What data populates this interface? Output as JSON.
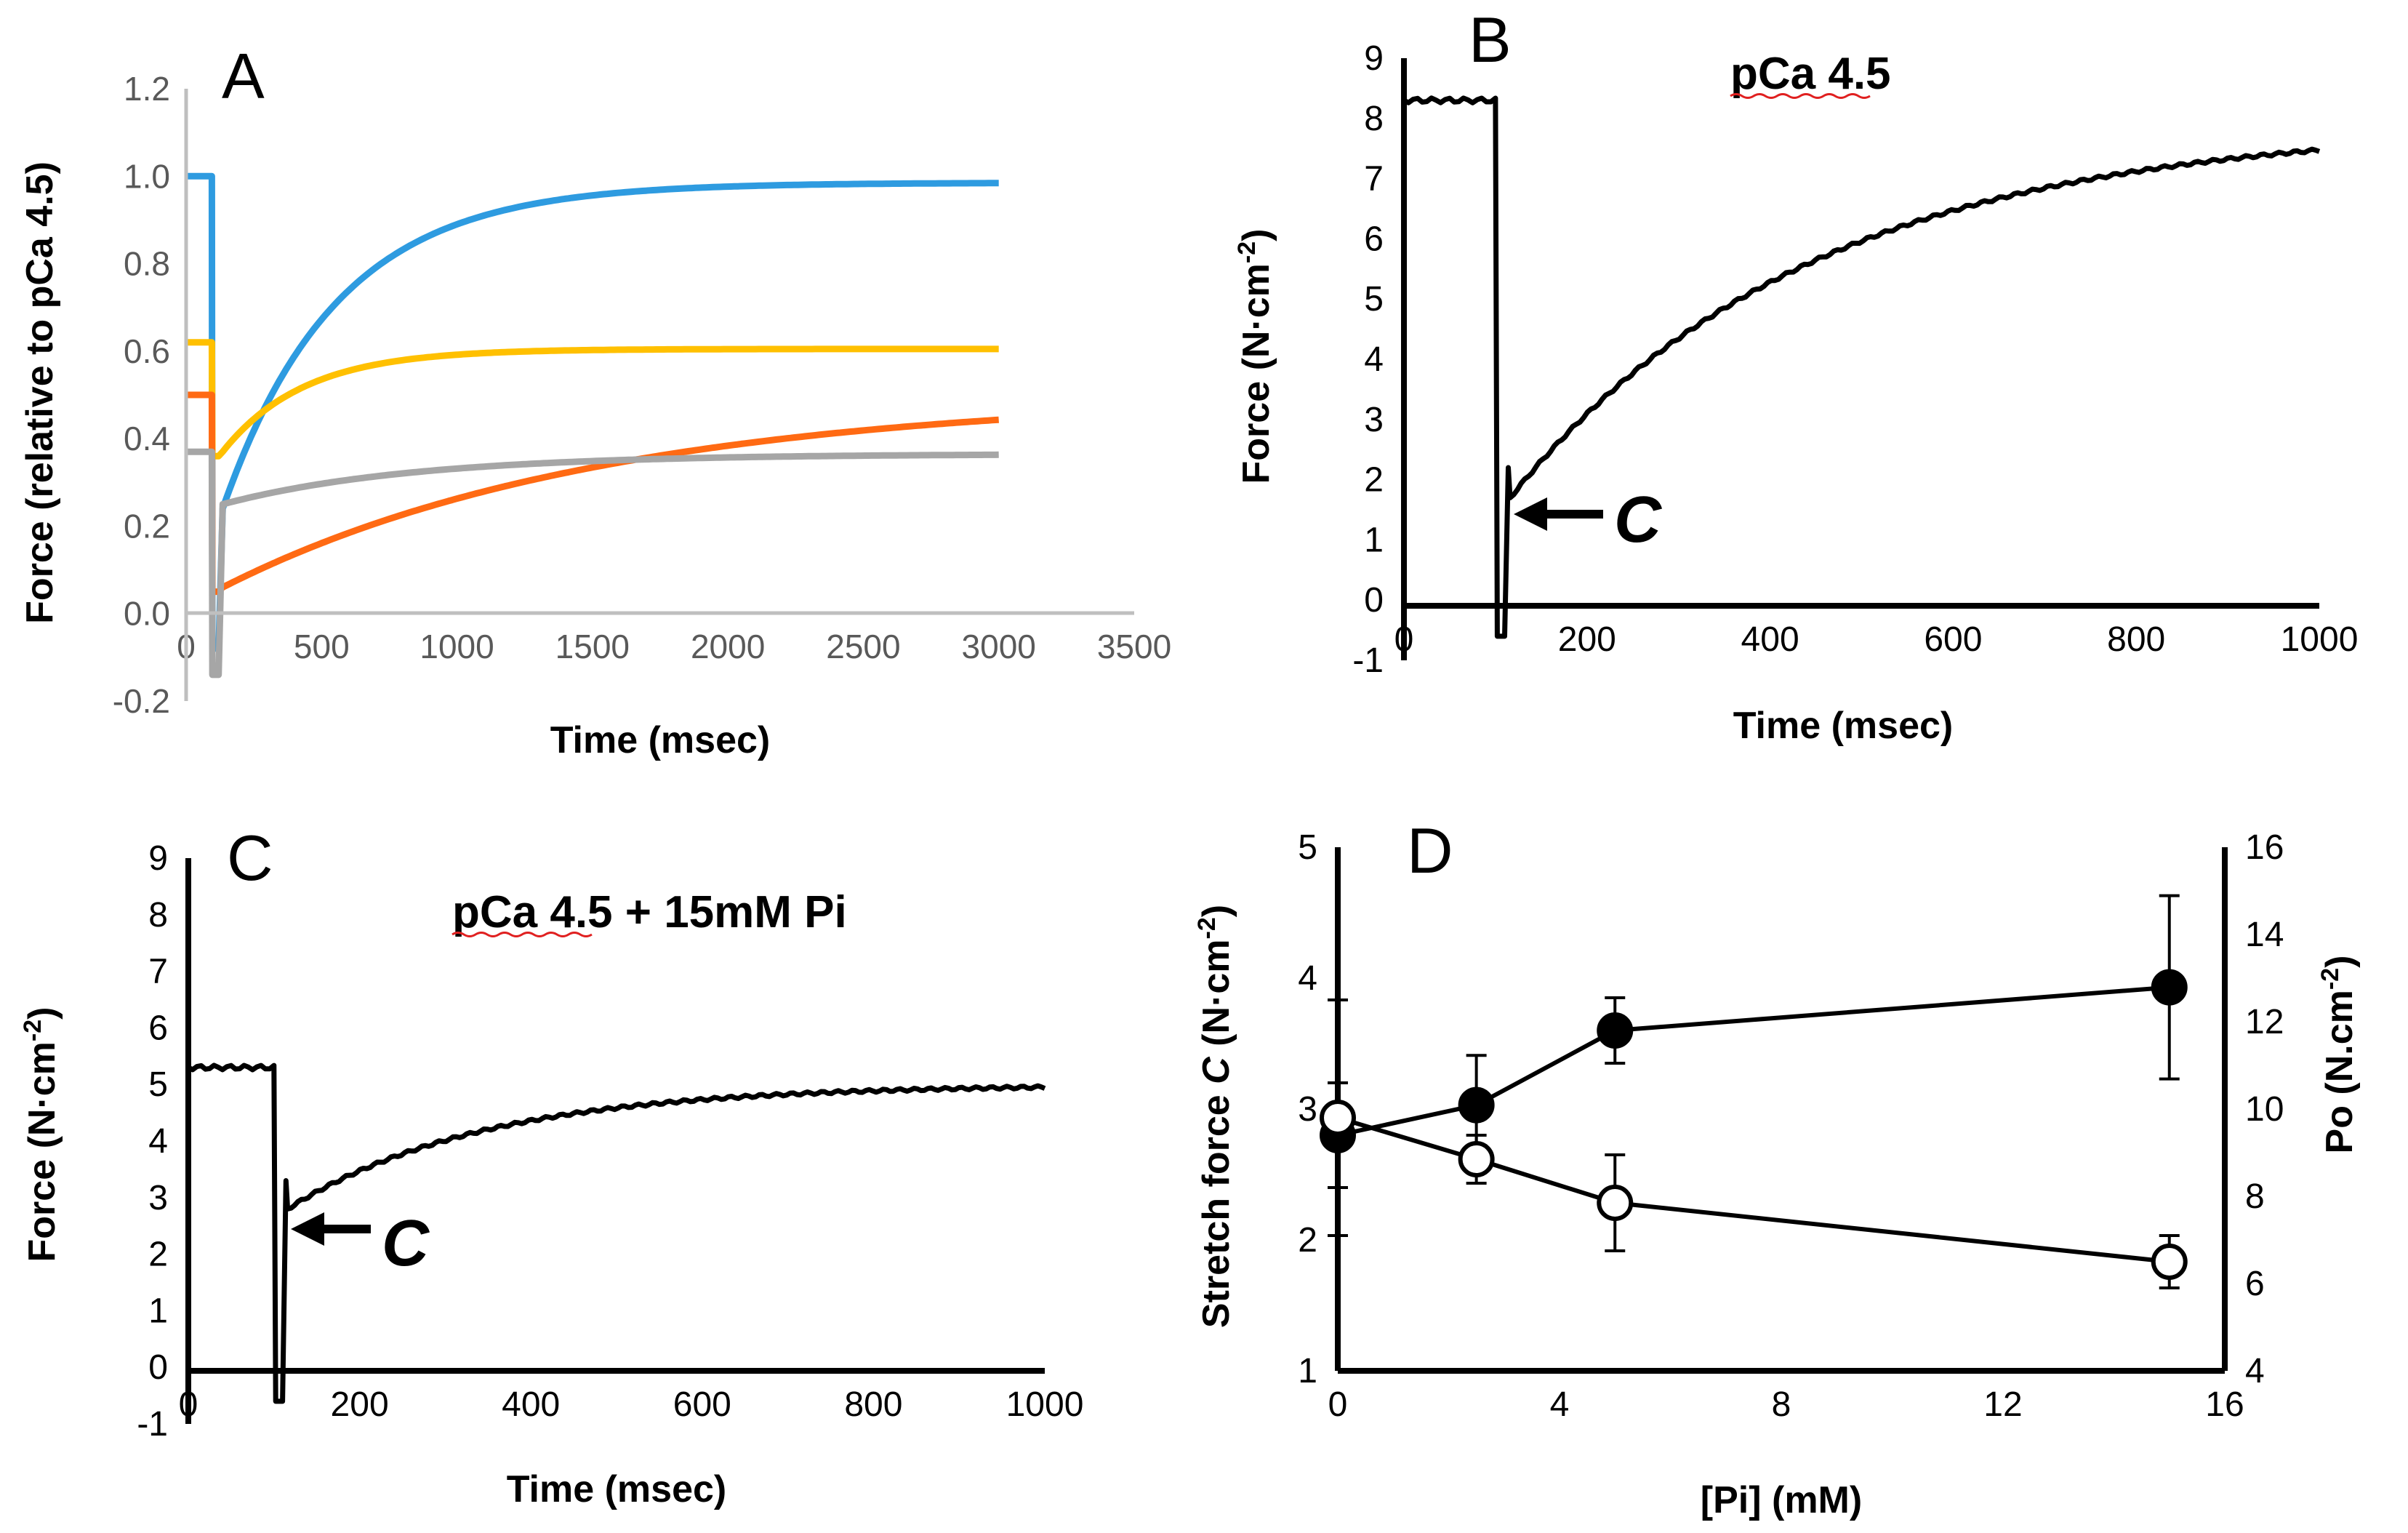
{
  "chart_data": [
    {
      "panel": "A",
      "type": "line",
      "xlabel": "Time (msec)",
      "ylabel": "Force (relative to pCa 4.5)",
      "xlim": [
        0,
        3500
      ],
      "ylim": [
        -0.2,
        1.2
      ],
      "xticks": [
        "0",
        "500",
        "1000",
        "1500",
        "2000",
        "2500",
        "3000",
        "3500"
      ],
      "yticks": [
        "-0.2",
        "0.0",
        "0.2",
        "0.4",
        "0.6",
        "0.8",
        "1.0",
        "1.2"
      ],
      "grid": false,
      "legend": "none",
      "series": [
        {
          "color": "#2e9be0",
          "pre": 1.0,
          "drop_min": -0.08,
          "start": 0.24,
          "plateau": 0.985,
          "tau": 420
        },
        {
          "color": "#ffc000",
          "pre": 0.62,
          "drop_min": 0.36,
          "start": 0.37,
          "plateau": 0.605,
          "tau": 300
        },
        {
          "color": "#ff6a13",
          "pre": 0.5,
          "drop_min": 0.05,
          "start": 0.06,
          "plateau": 0.5,
          "tau": 1400
        },
        {
          "color": "#a6a6a6",
          "pre": 0.37,
          "drop_min": -0.14,
          "start": 0.25,
          "plateau": 0.365,
          "tau": 700
        }
      ]
    },
    {
      "panel": "B",
      "type": "line",
      "title": "pCa 4.5",
      "xlabel": "Time (msec)",
      "ylabel": "Force (N·cm-2)",
      "xlim": [
        0,
        1000
      ],
      "ylim": [
        -1,
        9
      ],
      "xticks": [
        "0",
        "200",
        "400",
        "600",
        "800",
        "1000"
      ],
      "yticks": [
        "-1",
        "0",
        "1",
        "2",
        "3",
        "4",
        "5",
        "6",
        "7",
        "8",
        "9"
      ],
      "annotation": "C",
      "series": [
        {
          "color": "#000000",
          "pre": 8.3,
          "drop_min": -0.6,
          "spike": 2.2,
          "start": 1.7,
          "plateau": 7.9,
          "tau": 330
        }
      ]
    },
    {
      "panel": "C",
      "type": "line",
      "title": "pCa 4.5 + 15mM Pi",
      "xlabel": "Time (msec)",
      "ylabel": "Force (N·cm-2)",
      "xlim": [
        0,
        1000
      ],
      "ylim": [
        -1,
        9
      ],
      "xticks": [
        "0",
        "200",
        "400",
        "600",
        "800",
        "1000"
      ],
      "yticks": [
        "-1",
        "0",
        "1",
        "2",
        "3",
        "4",
        "5",
        "6",
        "7",
        "8",
        "9"
      ],
      "annotation": "C",
      "series": [
        {
          "color": "#000000",
          "pre": 5.3,
          "drop_min": -0.6,
          "spike": 3.3,
          "start": 2.8,
          "plateau": 5.0,
          "tau": 230
        }
      ]
    },
    {
      "panel": "D",
      "type": "scatter",
      "xlabel": "[Pi] (mM)",
      "ylabel": "Stretch force C (N·cm-2)",
      "y2label": "Po (N.cm-2)",
      "xlim": [
        0,
        16
      ],
      "ylim": [
        1,
        5
      ],
      "y2lim": [
        4,
        16
      ],
      "xticks": [
        "0",
        "4",
        "8",
        "12",
        "16"
      ],
      "yticks": [
        "1",
        "2",
        "3",
        "4",
        "5"
      ],
      "y2ticks": [
        "4",
        "6",
        "8",
        "10",
        "12",
        "14",
        "16"
      ],
      "series": [
        {
          "marker": "filled",
          "axis": "left",
          "x": [
            0,
            2.5,
            5,
            15
          ],
          "y": [
            2.8,
            3.03,
            3.6,
            3.93
          ],
          "err": [
            0.4,
            0.38,
            0.25,
            0.7
          ]
        },
        {
          "marker": "open",
          "axis": "right",
          "x": [
            0,
            2.5,
            5,
            15
          ],
          "y": [
            9.8,
            8.85,
            7.85,
            6.5
          ],
          "err": [
            2.7,
            0.55,
            1.1,
            0.6
          ]
        }
      ]
    }
  ]
}
